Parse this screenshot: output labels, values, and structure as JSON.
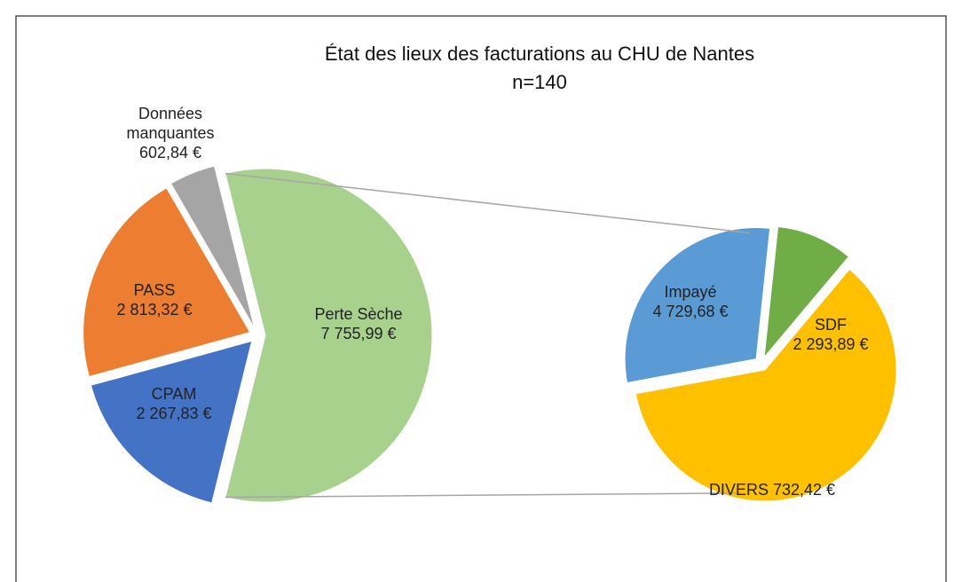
{
  "chart_data": {
    "type": "pie_of_pie",
    "title": "État des lieux des facturations au CHU de Nantes",
    "subtitle": "n=140",
    "categories": [
      "Perte Sèche",
      "CPAM",
      "PASS",
      "Données manquantes"
    ],
    "values": [
      7755.99,
      2267.83,
      2813.32,
      602.84
    ],
    "value_labels": [
      "7 755,99 €",
      "2 267,83 €",
      "2 813,32 €",
      "602,84 €"
    ],
    "colors": [
      "#a9d18e",
      "#4472c4",
      "#ed7d31",
      "#a5a5a5"
    ],
    "secondary": {
      "categories": [
        "Impayé",
        "SDF",
        "DIVERS"
      ],
      "values": [
        4729.68,
        2293.89,
        732.42
      ],
      "value_labels": [
        "4 729,68 €",
        "2 293,89 €",
        "732,42 €"
      ],
      "colors": [
        "#ffc000",
        "#5b9bd5",
        "#70ad47"
      ]
    }
  }
}
